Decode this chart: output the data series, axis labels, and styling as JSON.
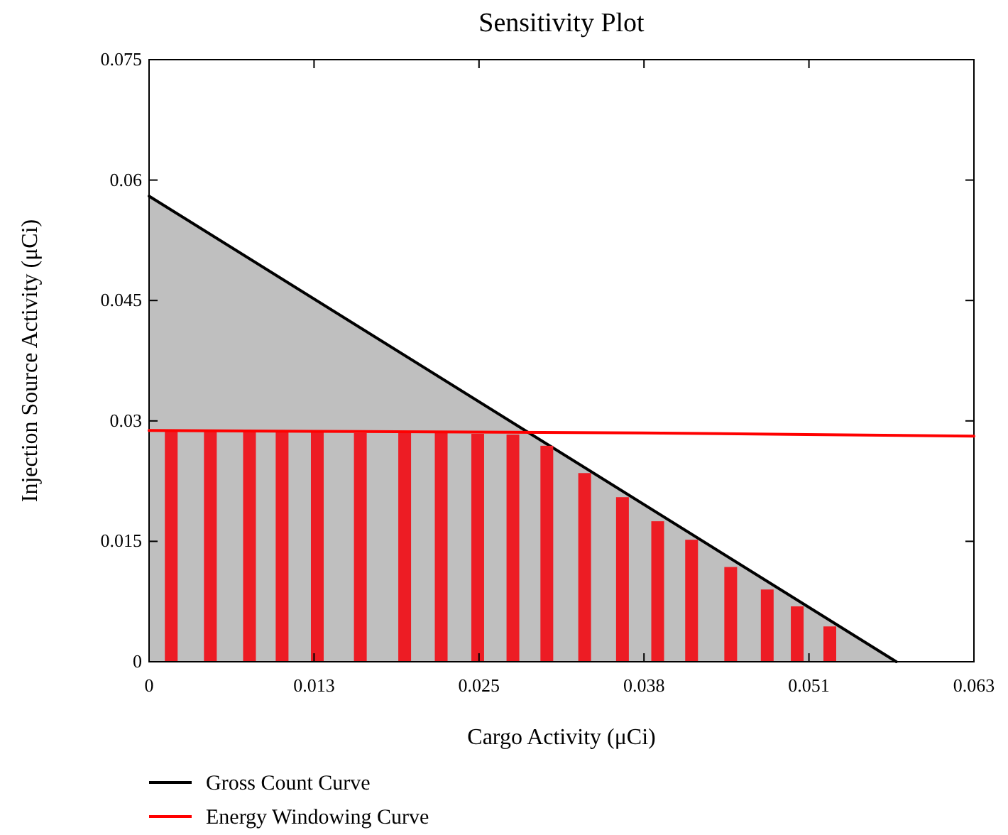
{
  "chart_data": {
    "type": "bar",
    "title": "Sensitivity Plot",
    "xlabel": "Cargo Activity (μCi)",
    "ylabel": "Injection Source Activity (μCi)",
    "xlim": [
      0,
      0.06325
    ],
    "ylim": [
      0,
      0.075
    ],
    "xticks": [
      0,
      {
        "value": 0.01265,
        "label": "0.013"
      },
      {
        "value": 0.0253,
        "label": "0.025"
      },
      {
        "value": 0.03795,
        "label": "0.038"
      },
      {
        "value": 0.0506,
        "label": "0.051"
      },
      {
        "value": 0.06325,
        "label": "0.063"
      }
    ],
    "yticks": [
      0,
      0.015,
      0.03,
      0.045,
      0.06,
      0.075
    ],
    "grid": false,
    "legend": "bottom",
    "series": [
      {
        "type": "area",
        "name": "Gross Count Curve",
        "color": "#000000",
        "x": [
          0,
          0.0573
        ],
        "values": [
          0.058,
          0
        ]
      },
      {
        "color": "#ed1c24",
        "x": [
          0.0017,
          0.0047,
          0.0077,
          0.0102,
          0.0129,
          0.0162,
          0.0196,
          0.0224,
          0.0252,
          0.0279,
          0.0305,
          0.0334,
          0.0363,
          0.039,
          0.0416,
          0.0446,
          0.0474,
          0.0497,
          0.0522
        ],
        "values": [
          0.0287,
          0.0287,
          0.0287,
          0.0287,
          0.0286,
          0.0285,
          0.0285,
          0.0285,
          0.0284,
          0.0283,
          0.0269,
          0.0235,
          0.0205,
          0.0175,
          0.0152,
          0.0118,
          0.009,
          0.0069,
          0.0044
        ]
      },
      {
        "type": "line",
        "name": "Energy Windowing Curve",
        "color": "#ff0000",
        "x": [
          0,
          0.0126,
          0.0378,
          0.0504,
          0.06325
        ],
        "values": [
          0.0288,
          0.0287,
          0.0285,
          0.0283,
          0.0281
        ]
      }
    ]
  }
}
